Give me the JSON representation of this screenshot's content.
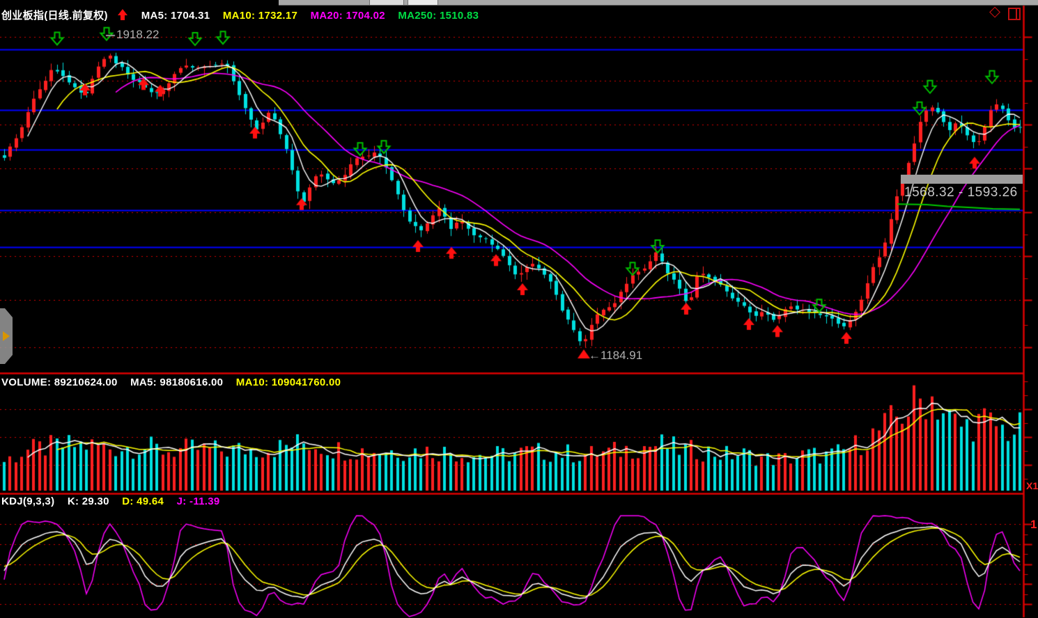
{
  "main_panel": {
    "title": "创业板指(日线.前复权)",
    "ma5": "MA5: 1704.31",
    "ma10": "MA10: 1732.17",
    "ma20": "MA20: 1704.02",
    "ma250": "MA250: 1510.83",
    "high_label": "1918.22",
    "low_label": "←1184.91",
    "range_tooltip": "1568.32 - 1593.26"
  },
  "volume_panel": {
    "volume": "VOLUME: 89210624.00",
    "ma5": "MA5: 98180616.00",
    "ma10": "MA10: 109041760.00",
    "x1_label": "X1"
  },
  "kdj_panel": {
    "title": "KDJ(9,3,3)",
    "k": "K: 29.30",
    "d": "D: 49.64",
    "j": "J: -11.39",
    "axis_label": "1"
  },
  "colors": {
    "up": "#ff2020",
    "down": "#00e0e0",
    "ma5": "#ffffff",
    "ma10": "#ffff00",
    "ma20": "#ff00ff",
    "ma250": "#00c800",
    "grid": "#d40000",
    "level_line": "#0000ff",
    "axis": "#dd0000",
    "label_gray": "#b0b0b0",
    "signal_buy": "#ff1010",
    "signal_sell": "#00c000"
  },
  "chart_data": {
    "type": "candlestick",
    "panels": [
      "price",
      "volume",
      "kdj"
    ],
    "price": {
      "bars": 174,
      "high": 1918.22,
      "low": 1184.91,
      "ma5": 1704.31,
      "ma10": 1732.17,
      "ma20": 1704.02,
      "ma250": 1510.83,
      "grid_prices": [
        1918.22,
        1814.6,
        1711.0,
        1607.4,
        1503.8,
        1400.2,
        1296.6,
        1184.91
      ],
      "support_levels": [
        1888.6,
        1745.6,
        1651.9,
        1508.9,
        1421.8
      ],
      "range_box": {
        "from": 1568.32,
        "to": 1593.26
      },
      "close_path": [
        [
          5,
          1630
        ],
        [
          20,
          1668
        ],
        [
          35,
          1718
        ],
        [
          55,
          1792
        ],
        [
          75,
          1841
        ],
        [
          90,
          1833
        ],
        [
          105,
          1800
        ],
        [
          122,
          1783
        ],
        [
          140,
          1841
        ],
        [
          155,
          1882
        ],
        [
          165,
          1850
        ],
        [
          178,
          1841
        ],
        [
          192,
          1816
        ],
        [
          210,
          1800
        ],
        [
          230,
          1783
        ],
        [
          250,
          1833
        ],
        [
          270,
          1849
        ],
        [
          292,
          1841
        ],
        [
          312,
          1857
        ],
        [
          326,
          1849
        ],
        [
          340,
          1800
        ],
        [
          355,
          1734
        ],
        [
          370,
          1701
        ],
        [
          385,
          1734
        ],
        [
          396,
          1718
        ],
        [
          410,
          1652
        ],
        [
          425,
          1561
        ],
        [
          437,
          1528
        ],
        [
          450,
          1586
        ],
        [
          463,
          1602
        ],
        [
          476,
          1569
        ],
        [
          490,
          1586
        ],
        [
          505,
          1619
        ],
        [
          520,
          1635
        ],
        [
          536,
          1640
        ],
        [
          550,
          1627
        ],
        [
          563,
          1578
        ],
        [
          576,
          1520
        ],
        [
          590,
          1482
        ],
        [
          605,
          1459
        ],
        [
          618,
          1496
        ],
        [
          632,
          1512
        ],
        [
          645,
          1463
        ],
        [
          658,
          1482
        ],
        [
          672,
          1463
        ],
        [
          686,
          1446
        ],
        [
          700,
          1438
        ],
        [
          715,
          1422
        ],
        [
          728,
          1384
        ],
        [
          742,
          1356
        ],
        [
          755,
          1367
        ],
        [
          768,
          1384
        ],
        [
          782,
          1351
        ],
        [
          795,
          1323
        ],
        [
          808,
          1269
        ],
        [
          822,
          1229
        ],
        [
          836,
          1196
        ],
        [
          843,
          1216
        ],
        [
          856,
          1262
        ],
        [
          868,
          1282
        ],
        [
          880,
          1274
        ],
        [
          893,
          1323
        ],
        [
          906,
          1348
        ],
        [
          918,
          1361
        ],
        [
          930,
          1384
        ],
        [
          943,
          1410
        ],
        [
          956,
          1372
        ],
        [
          968,
          1344
        ],
        [
          980,
          1307
        ],
        [
          988,
          1285
        ],
        [
          1000,
          1348
        ],
        [
          1013,
          1356
        ],
        [
          1026,
          1339
        ],
        [
          1040,
          1318
        ],
        [
          1056,
          1298
        ],
        [
          1070,
          1278
        ],
        [
          1083,
          1265
        ],
        [
          1096,
          1269
        ],
        [
          1108,
          1252
        ],
        [
          1120,
          1262
        ],
        [
          1135,
          1278
        ],
        [
          1148,
          1274
        ],
        [
          1160,
          1262
        ],
        [
          1173,
          1269
        ],
        [
          1186,
          1257
        ],
        [
          1200,
          1249
        ],
        [
          1215,
          1236
        ],
        [
          1228,
          1269
        ],
        [
          1240,
          1315
        ],
        [
          1252,
          1364
        ],
        [
          1263,
          1400
        ],
        [
          1273,
          1446
        ],
        [
          1283,
          1512
        ],
        [
          1293,
          1574
        ],
        [
          1303,
          1619
        ],
        [
          1313,
          1668
        ],
        [
          1323,
          1734
        ],
        [
          1333,
          1762
        ],
        [
          1343,
          1745
        ],
        [
          1353,
          1722
        ],
        [
          1363,
          1701
        ],
        [
          1373,
          1712
        ],
        [
          1383,
          1696
        ],
        [
          1393,
          1676
        ],
        [
          1403,
          1657
        ],
        [
          1413,
          1701
        ],
        [
          1423,
          1755
        ],
        [
          1433,
          1762
        ],
        [
          1443,
          1734
        ],
        [
          1453,
          1712
        ],
        [
          1463,
          1705
        ]
      ],
      "ma250_path": [
        [
          1288,
          1523
        ],
        [
          1330,
          1522
        ],
        [
          1360,
          1518
        ],
        [
          1395,
          1515
        ],
        [
          1425,
          1512
        ],
        [
          1464,
          1511
        ]
      ],
      "buy_signals": [
        [
          122,
          1808
        ],
        [
          206,
          1821
        ],
        [
          230,
          1805
        ],
        [
          366,
          1706
        ],
        [
          433,
          1537
        ],
        [
          600,
          1438
        ],
        [
          648,
          1422
        ],
        [
          712,
          1405
        ],
        [
          750,
          1336
        ],
        [
          985,
          1290
        ],
        [
          1075,
          1254
        ],
        [
          1116,
          1237
        ],
        [
          1215,
          1221
        ],
        [
          1399,
          1635
        ]
      ],
      "sell_signals": [
        [
          82,
          1929
        ],
        [
          153,
          1940
        ],
        [
          280,
          1928
        ],
        [
          320,
          1931
        ],
        [
          517,
          1668
        ],
        [
          551,
          1673
        ],
        [
          908,
          1385
        ],
        [
          944,
          1438
        ],
        [
          1176,
          1298
        ],
        [
          1320,
          1764
        ],
        [
          1335,
          1815
        ],
        [
          1424,
          1838
        ]
      ]
    },
    "volume": {
      "current": 89210624,
      "ma5": 98180616,
      "ma10": 109041760,
      "profile_path": [
        [
          5,
          42
        ],
        [
          40,
          58
        ],
        [
          80,
          64
        ],
        [
          120,
          66
        ],
        [
          160,
          62
        ],
        [
          200,
          64
        ],
        [
          240,
          58
        ],
        [
          280,
          60
        ],
        [
          320,
          58
        ],
        [
          360,
          60
        ],
        [
          400,
          62
        ],
        [
          440,
          70
        ],
        [
          480,
          60
        ],
        [
          520,
          58
        ],
        [
          560,
          58
        ],
        [
          600,
          58
        ],
        [
          640,
          56
        ],
        [
          680,
          52
        ],
        [
          720,
          52
        ],
        [
          760,
          56
        ],
        [
          800,
          55
        ],
        [
          840,
          52
        ],
        [
          880,
          56
        ],
        [
          920,
          64
        ],
        [
          950,
          66
        ],
        [
          980,
          58
        ],
        [
          1010,
          58
        ],
        [
          1040,
          52
        ],
        [
          1070,
          52
        ],
        [
          1100,
          46
        ],
        [
          1130,
          46
        ],
        [
          1160,
          52
        ],
        [
          1190,
          50
        ],
        [
          1215,
          58
        ],
        [
          1240,
          72
        ],
        [
          1265,
          88
        ],
        [
          1290,
          108
        ],
        [
          1315,
          126
        ],
        [
          1335,
          138
        ],
        [
          1350,
          120
        ],
        [
          1365,
          102
        ],
        [
          1380,
          92
        ],
        [
          1395,
          96
        ],
        [
          1410,
          100
        ],
        [
          1425,
          96
        ],
        [
          1440,
          88
        ],
        [
          1455,
          86
        ],
        [
          1465,
          90
        ]
      ]
    },
    "kdj": {
      "params": "9,3,3",
      "k": 29.3,
      "d": 49.64,
      "j": -11.39,
      "grid_values": [
        100,
        75,
        50,
        25,
        0
      ],
      "range": [
        -15,
        110
      ]
    }
  }
}
